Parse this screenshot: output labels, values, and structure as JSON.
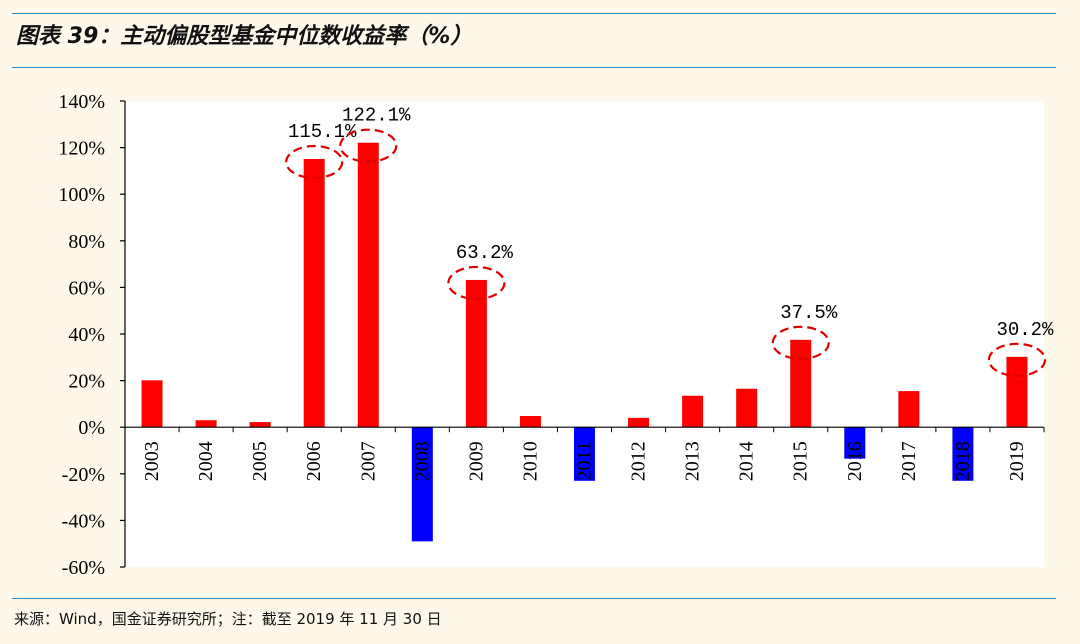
{
  "header": {
    "title": "图表 39：主动偏股型基金中位数收益率（%）"
  },
  "footer": {
    "source": "来源：Wind，国金证券研究所；注：截至 2019 年 11 月 30 日"
  },
  "colors": {
    "background": "#fdf8ea",
    "rule": "#2e86c1",
    "positive_bar": "#ff0000",
    "negative_bar": "#0000ff",
    "highlight_circle": "#e00000"
  },
  "chart_data": {
    "type": "bar",
    "title": "",
    "xlabel": "",
    "ylabel": "",
    "ylim": [
      -60,
      140
    ],
    "y_ticks": [
      "140%",
      "120%",
      "100%",
      "80%",
      "60%",
      "40%",
      "20%",
      "0%",
      "-20%",
      "-40%",
      "-60%"
    ],
    "y_tick_values": [
      140,
      120,
      100,
      80,
      60,
      40,
      20,
      0,
      -20,
      -40,
      -60
    ],
    "categories": [
      "2003",
      "2004",
      "2005",
      "2006",
      "2007",
      "2008",
      "2009",
      "2010",
      "2011",
      "2012",
      "2013",
      "2014",
      "2015",
      "2016",
      "2017",
      "2018",
      "2019"
    ],
    "values": [
      20.1,
      3.0,
      2.2,
      115.1,
      122.1,
      -49.0,
      63.2,
      4.8,
      -23.0,
      4.0,
      13.5,
      16.5,
      37.5,
      -13.5,
      15.5,
      -23.0,
      30.2
    ],
    "grid": false,
    "annotations": [
      {
        "category": "2006",
        "label": "115.1%"
      },
      {
        "category": "2007",
        "label": "122.1%"
      },
      {
        "category": "2009",
        "label": "63.2%"
      },
      {
        "category": "2015",
        "label": "37.5%"
      },
      {
        "category": "2019",
        "label": "30.2%"
      }
    ]
  }
}
